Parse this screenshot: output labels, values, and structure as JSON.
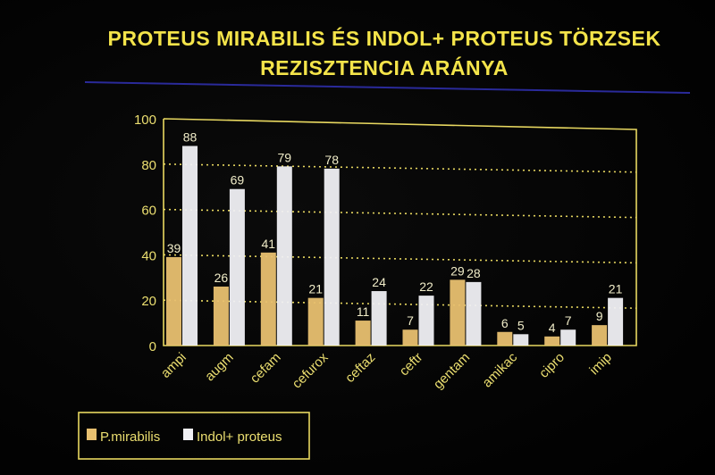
{
  "title": [
    "PROTEUS MIRABILIS ÉS INDOL+ PROTEUS TÖRZSEK",
    "REZISZTENCIA ARÁNYA"
  ],
  "colors": {
    "title": "#f4e44a",
    "rule": "#2a2a9a",
    "frame": "#e8d860",
    "grid": "#e8d860",
    "axis_text": "#ecdf70",
    "series": [
      "#e8c070",
      "#f0f0f4"
    ]
  },
  "chart_data": {
    "type": "bar",
    "title": "PROTEUS MIRABILIS ÉS INDOL+ PROTEUS TÖRZSEK REZISZTENCIA ARÁNYA",
    "xlabel": "",
    "ylabel": "",
    "ylim": [
      0,
      100
    ],
    "yticks": [
      "0",
      "20",
      "40",
      "60",
      "80",
      "100"
    ],
    "grid": true,
    "categories": [
      "ampi",
      "augm",
      "cefam",
      "cefurox",
      "ceftaz",
      "ceftr",
      "gentam",
      "amikac",
      "cipro",
      "imip"
    ],
    "series": [
      {
        "name": "P.mirabilis",
        "values": [
          39,
          26,
          41,
          21,
          11,
          7,
          29,
          6,
          4,
          9
        ]
      },
      {
        "name": "Indol+ proteus",
        "values": [
          88,
          69,
          79,
          78,
          24,
          22,
          28,
          5,
          7,
          21
        ]
      }
    ],
    "data_labels": [
      [
        "39",
        "26",
        "41",
        "21",
        "11",
        "7",
        "29",
        "6",
        "4",
        "9"
      ],
      [
        "88",
        "69",
        "79",
        "78",
        "24",
        "22",
        "28",
        "5",
        "7",
        "21"
      ]
    ],
    "legend": [
      "P.mirabilis",
      "Indol+ proteus"
    ],
    "legend_position": "bottom-left"
  }
}
